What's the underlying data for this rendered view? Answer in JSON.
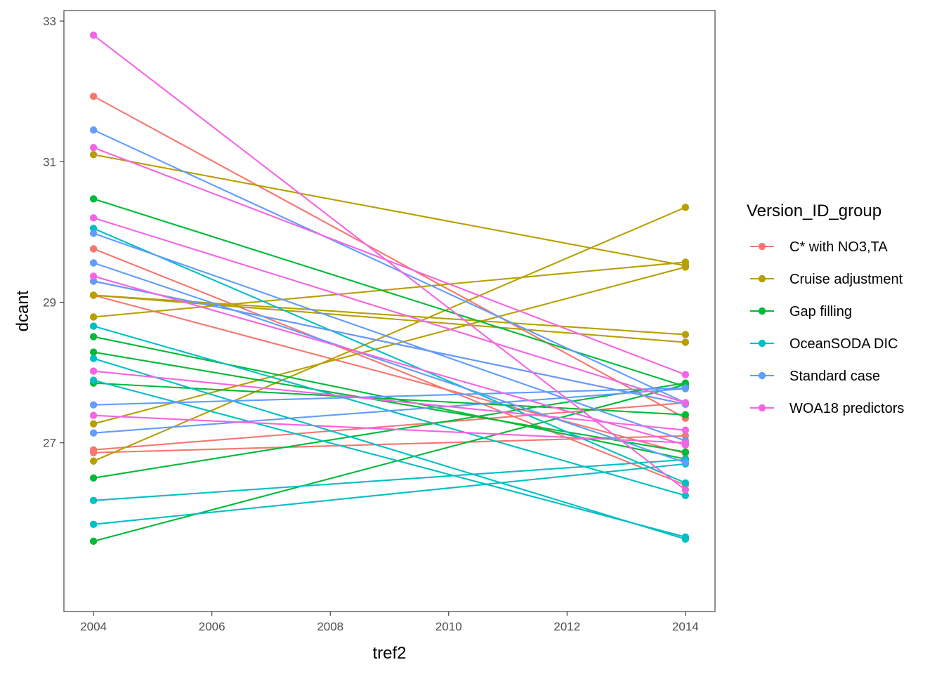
{
  "chart_data": {
    "type": "line",
    "xlabel": "tref2",
    "ylabel": "dcant",
    "xlim": [
      2003.5,
      2014.5
    ],
    "ylim": [
      24.6,
      33.15
    ],
    "x_ticks": [
      "2004",
      "2006",
      "2008",
      "2010",
      "2012",
      "2014"
    ],
    "y_ticks": [
      "27",
      "29",
      "31",
      "33"
    ],
    "grid": false,
    "legend": {
      "title": "Version_ID_group",
      "position": "right",
      "entries": [
        "C* with NO3,TA",
        "Cruise adjustment",
        "Gap filling",
        "OceanSODA DIC",
        "Standard case",
        "WOA18 predictors"
      ]
    },
    "colors": {
      "C* with NO3,TA": "#F8766D",
      "Cruise adjustment": "#B79F00",
      "Gap filling": "#00BA38",
      "OceanSODA DIC": "#00BFC4",
      "Standard case": "#619CFF",
      "WOA18 predictors": "#F564E3"
    },
    "series": [
      {
        "group": "C* with NO3,TA",
        "x": [
          2004,
          2014
        ],
        "y": [
          31.93,
          27.35
        ]
      },
      {
        "group": "C* with NO3,TA",
        "x": [
          2004,
          2014
        ],
        "y": [
          29.76,
          26.4
        ]
      },
      {
        "group": "C* with NO3,TA",
        "x": [
          2004,
          2014
        ],
        "y": [
          29.3,
          27.55
        ]
      },
      {
        "group": "C* with NO3,TA",
        "x": [
          2004,
          2014
        ],
        "y": [
          29.1,
          26.85
        ]
      },
      {
        "group": "C* with NO3,TA",
        "x": [
          2004,
          2014
        ],
        "y": [
          26.9,
          27.57
        ]
      },
      {
        "group": "C* with NO3,TA",
        "x": [
          2004,
          2014
        ],
        "y": [
          26.86,
          27.1
        ]
      },
      {
        "group": "Cruise adjustment",
        "x": [
          2004,
          2014
        ],
        "y": [
          31.1,
          29.52
        ]
      },
      {
        "group": "Cruise adjustment",
        "x": [
          2004,
          2014
        ],
        "y": [
          29.1,
          28.54
        ]
      },
      {
        "group": "Cruise adjustment",
        "x": [
          2004,
          2014
        ],
        "y": [
          28.79,
          29.57
        ]
      },
      {
        "group": "Cruise adjustment",
        "x": [
          2004,
          2014
        ],
        "y": [
          27.27,
          29.5
        ]
      },
      {
        "group": "Cruise adjustment",
        "x": [
          2004,
          2014
        ],
        "y": [
          26.74,
          30.35
        ]
      },
      {
        "group": "Cruise adjustment",
        "x": [
          2004,
          2014
        ],
        "y": [
          29.1,
          28.43
        ]
      },
      {
        "group": "Gap filling",
        "x": [
          2004,
          2014
        ],
        "y": [
          30.47,
          27.8
        ]
      },
      {
        "group": "Gap filling",
        "x": [
          2004,
          2014
        ],
        "y": [
          28.51,
          26.77
        ]
      },
      {
        "group": "Gap filling",
        "x": [
          2004,
          2014
        ],
        "y": [
          28.29,
          26.87
        ]
      },
      {
        "group": "Gap filling",
        "x": [
          2004,
          2014
        ],
        "y": [
          27.85,
          27.4
        ]
      },
      {
        "group": "Gap filling",
        "x": [
          2004,
          2014
        ],
        "y": [
          26.5,
          27.85
        ]
      },
      {
        "group": "Gap filling",
        "x": [
          2004,
          2014
        ],
        "y": [
          25.6,
          27.83
        ]
      },
      {
        "group": "OceanSODA DIC",
        "x": [
          2004,
          2014
        ],
        "y": [
          30.05,
          26.43
        ]
      },
      {
        "group": "OceanSODA DIC",
        "x": [
          2004,
          2014
        ],
        "y": [
          28.66,
          26.25
        ]
      },
      {
        "group": "OceanSODA DIC",
        "x": [
          2004,
          2014
        ],
        "y": [
          28.2,
          25.63
        ]
      },
      {
        "group": "OceanSODA DIC",
        "x": [
          2004,
          2014
        ],
        "y": [
          27.89,
          25.66
        ]
      },
      {
        "group": "OceanSODA DIC",
        "x": [
          2004,
          2014
        ],
        "y": [
          26.18,
          26.76
        ]
      },
      {
        "group": "OceanSODA DIC",
        "x": [
          2004,
          2014
        ],
        "y": [
          25.84,
          26.7
        ]
      },
      {
        "group": "Standard case",
        "x": [
          2004,
          2014
        ],
        "y": [
          31.45,
          27.57
        ]
      },
      {
        "group": "Standard case",
        "x": [
          2004,
          2014
        ],
        "y": [
          29.98,
          27.03
        ]
      },
      {
        "group": "Standard case",
        "x": [
          2004,
          2014
        ],
        "y": [
          29.56,
          26.72
        ]
      },
      {
        "group": "Standard case",
        "x": [
          2004,
          2014
        ],
        "y": [
          29.3,
          27.55
        ]
      },
      {
        "group": "Standard case",
        "x": [
          2004,
          2014
        ],
        "y": [
          27.54,
          27.78
        ]
      },
      {
        "group": "Standard case",
        "x": [
          2004,
          2014
        ],
        "y": [
          27.14,
          27.77
        ]
      },
      {
        "group": "WOA18 predictors",
        "x": [
          2004,
          2014
        ],
        "y": [
          32.8,
          26.33
        ]
      },
      {
        "group": "WOA18 predictors",
        "x": [
          2004,
          2014
        ],
        "y": [
          31.2,
          27.97
        ]
      },
      {
        "group": "WOA18 predictors",
        "x": [
          2004,
          2014
        ],
        "y": [
          30.2,
          27.57
        ]
      },
      {
        "group": "WOA18 predictors",
        "x": [
          2004,
          2014
        ],
        "y": [
          29.37,
          26.97
        ]
      },
      {
        "group": "WOA18 predictors",
        "x": [
          2004,
          2014
        ],
        "y": [
          28.02,
          27.18
        ]
      },
      {
        "group": "WOA18 predictors",
        "x": [
          2004,
          2014
        ],
        "y": [
          27.39,
          27.0
        ]
      }
    ]
  }
}
